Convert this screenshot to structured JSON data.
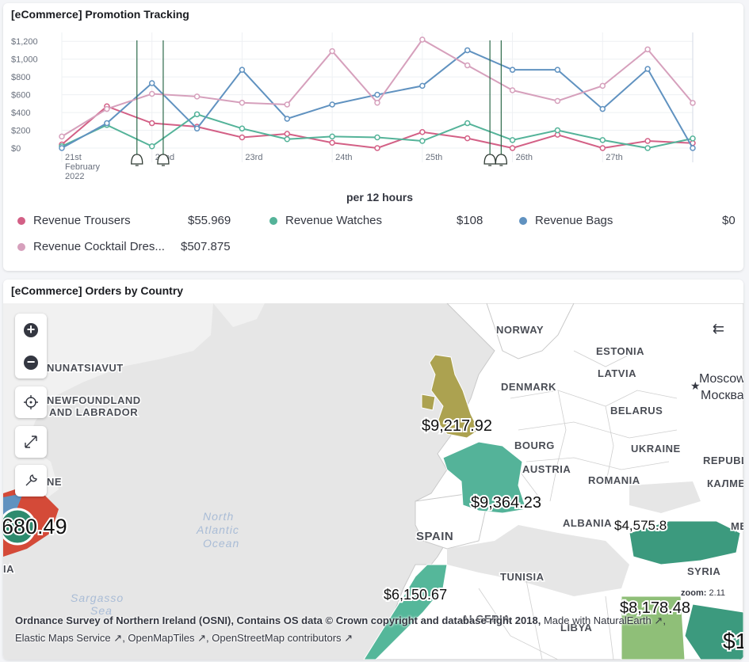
{
  "panel1": {
    "title": "[eCommerce] Promotion Tracking",
    "x_axis_label": "per 12 hours",
    "legend": [
      {
        "label": "Revenue Trousers",
        "value": "$55.969",
        "color": "#d36086"
      },
      {
        "label": "Revenue Watches",
        "value": "$108",
        "color": "#54b399"
      },
      {
        "label": "Revenue Bags",
        "value": "$0",
        "color": "#6092c0"
      },
      {
        "label": "Revenue Cocktail Dres...",
        "value": "$507.875",
        "color": "#d6a0bc"
      }
    ]
  },
  "chart_data": {
    "type": "line",
    "title": "[eCommerce] Promotion Tracking",
    "xlabel": "per 12 hours",
    "ylabel": "",
    "ylim": [
      0,
      1300
    ],
    "y_ticks": [
      "$0",
      "$200",
      "$400",
      "$600",
      "$800",
      "$1,000",
      "$1,200"
    ],
    "x_ticks": [
      "21st February 2022",
      "22nd",
      "23rd",
      "24th",
      "25th",
      "26th",
      "27th"
    ],
    "x": [
      "Feb 21 00:00",
      "Feb 21 12:00",
      "Feb 22 00:00",
      "Feb 22 12:00",
      "Feb 23 00:00",
      "Feb 23 12:00",
      "Feb 24 00:00",
      "Feb 24 12:00",
      "Feb 25 00:00",
      "Feb 25 12:00",
      "Feb 26 00:00",
      "Feb 26 12:00",
      "Feb 27 00:00",
      "Feb 27 12:00",
      "Feb 28 00:00"
    ],
    "series": [
      {
        "name": "Revenue Trousers",
        "color": "#d36086",
        "values": [
          40,
          470,
          280,
          240,
          120,
          160,
          60,
          0,
          180,
          110,
          0,
          150,
          0,
          80,
          55.969
        ]
      },
      {
        "name": "Revenue Watches",
        "color": "#54b399",
        "values": [
          20,
          260,
          20,
          380,
          220,
          100,
          130,
          120,
          80,
          280,
          90,
          200,
          90,
          0,
          108
        ]
      },
      {
        "name": "Revenue Bags",
        "color": "#6092c0",
        "values": [
          0,
          280,
          730,
          220,
          880,
          330,
          490,
          600,
          700,
          1100,
          880,
          880,
          440,
          890,
          0
        ]
      },
      {
        "name": "Revenue Cocktail Dres...",
        "color": "#d6a0bc",
        "values": [
          130,
          440,
          610,
          580,
          510,
          490,
          1090,
          510,
          1220,
          930,
          650,
          530,
          700,
          1110,
          507.875
        ]
      }
    ],
    "annotations": [
      {
        "x": "Feb 21 20:00",
        "icon": "bell-icon"
      },
      {
        "x": "Feb 22 03:00",
        "icon": "bell-icon"
      },
      {
        "x": "Feb 25 18:00",
        "icon": "bell-icon"
      },
      {
        "x": "Feb 25 21:00",
        "icon": "bell-icon"
      }
    ],
    "grid": true,
    "legend_position": "bottom"
  },
  "panel2": {
    "title": "[eCommerce] Orders by Country",
    "zoom_label": "zoom:",
    "zoom_value": "2.11",
    "legend_toggle_icon": "legend-collapse-icon",
    "place_labels": {
      "norway": "NORWAY",
      "estonia": "ESTONIA",
      "latvia": "LATVIA",
      "denmark": "DENMARK",
      "belarus": "BELARUS",
      "moscow_en": "Moscow",
      "moscow_ru": "Москва",
      "ukraine": "UKRAINE",
      "republic": "REPUBL",
      "kalm": "КАЛМЕ",
      "luxembourg": "BOURG",
      "austria": "AUSTRIA",
      "romania": "ROMANIA",
      "albania": "ALBANIA",
      "spain": "SPAIN",
      "tunisia": "TUNISIA",
      "syria": "SYRIA",
      "algeria": "ALGERIA",
      "libya": "LIBYA",
      "nunatsiavut": "NUNATSIAVUT",
      "newfoundland": "NEWFOUNDLAND",
      "and_labrador": "AND LABRADOR",
      "north_atlantic_1": "North",
      "north_atlantic_2": "Atlantic",
      "north_atlantic_3": "Ocean",
      "sargasso_1": "Sargasso",
      "sargasso_2": "Sea",
      "me": "ME",
      "ne": "NE",
      "ia": "IA"
    },
    "values": {
      "uk": "$9,217.92",
      "france": "$9,364.23",
      "turkey": "$4,575.8",
      "morocco": "$6,150.67",
      "egypt": "$8,178.48",
      "us": "680.49",
      "saudi": "$1"
    },
    "attribution_line1": "Ordnance Survey of Northern Ireland (OSNI), Contains OS data © Crown copyright and database right 2018,",
    "attribution_made_with": "Made with NaturalEarth",
    "attribution_ems": "Elastic Maps Service",
    "attribution_omt": "OpenMapTiles",
    "attribution_osm": "OpenStreetMap contributors",
    "colors": {
      "uk": "#aca250",
      "france": "#54b399",
      "turkey": "#3c9a7e",
      "morocco": "#55b79a",
      "egypt": "#8fbf78",
      "us": "#d44a38",
      "land": "#ffffff",
      "sea": "#e6e6e6"
    }
  }
}
